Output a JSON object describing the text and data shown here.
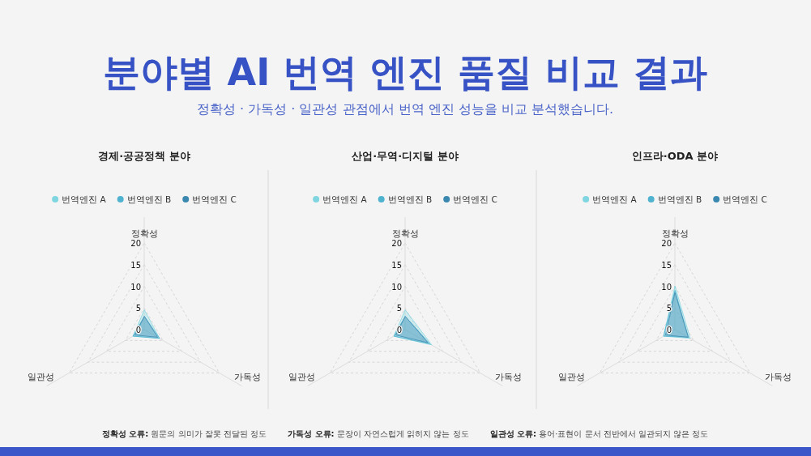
{
  "chart_data": [
    {
      "type": "radar",
      "title": "경제·공공정책 분야",
      "annotations": [
        "분야별 AI 번역 엔진 품질 비교 결과",
        "정확성 · 가독성 · 일관성 관점에서 번역 엔진 성능을 비교 분석했습니다."
      ],
      "categories": [
        "정확성",
        "가독성",
        "일관성"
      ],
      "ylim": [
        0,
        20
      ],
      "yticks": [
        0,
        5,
        10,
        15,
        20
      ],
      "grid": true,
      "legend": "top",
      "marker": "none",
      "series": [
        {
          "name": "번역엔진 A",
          "color": "#7fd6e0",
          "values": [
            4.5,
            4,
            3
          ]
        },
        {
          "name": "번역엔진 B",
          "color": "#4fb3d0",
          "values": [
            3,
            4,
            3
          ]
        },
        {
          "name": "번역엔진 C",
          "color": "#3a88b0",
          "values": [
            3,
            3.5,
            2.5
          ]
        }
      ]
    },
    {
      "type": "radar",
      "title": "산업·무역·디지털 분야",
      "categories": [
        "정확성",
        "가독성",
        "일관성"
      ],
      "ylim": [
        0,
        20
      ],
      "yticks": [
        0,
        5,
        10,
        15,
        20
      ],
      "grid": true,
      "legend": "top",
      "marker": "none",
      "series": [
        {
          "name": "번역엔진 A",
          "color": "#7fd6e0",
          "values": [
            4.5,
            7,
            3
          ]
        },
        {
          "name": "번역엔진 B",
          "color": "#4fb3d0",
          "values": [
            3,
            6.5,
            3
          ]
        },
        {
          "name": "번역엔진 C",
          "color": "#3a88b0",
          "values": [
            3,
            6,
            2.5
          ]
        }
      ]
    },
    {
      "type": "radar",
      "title": "인프라·ODA 분야",
      "annotations": [
        "정확성 오류: 원문의 의미가 잘못 전달된 정도",
        "가독성 오류: 문장이 자연스럽게 읽히지 않는 정도",
        "일관성 오류: 용어·표현이 문서 전반에서 일관되지 않은 정도"
      ],
      "categories": [
        "정확성",
        "가독성",
        "일관성"
      ],
      "ylim": [
        0,
        20
      ],
      "yticks": [
        0,
        5,
        10,
        15,
        20
      ],
      "grid": true,
      "legend": "top",
      "marker": "none",
      "series": [
        {
          "name": "번역엔진 A",
          "color": "#7fd6e0",
          "values": [
            10,
            4,
            3
          ]
        },
        {
          "name": "번역엔진 B",
          "color": "#4fb3d0",
          "values": [
            9,
            3.5,
            3
          ]
        },
        {
          "name": "번역엔진 C",
          "color": "#3a88b0",
          "values": [
            8.5,
            3.5,
            2.5
          ]
        }
      ]
    }
  ]
}
